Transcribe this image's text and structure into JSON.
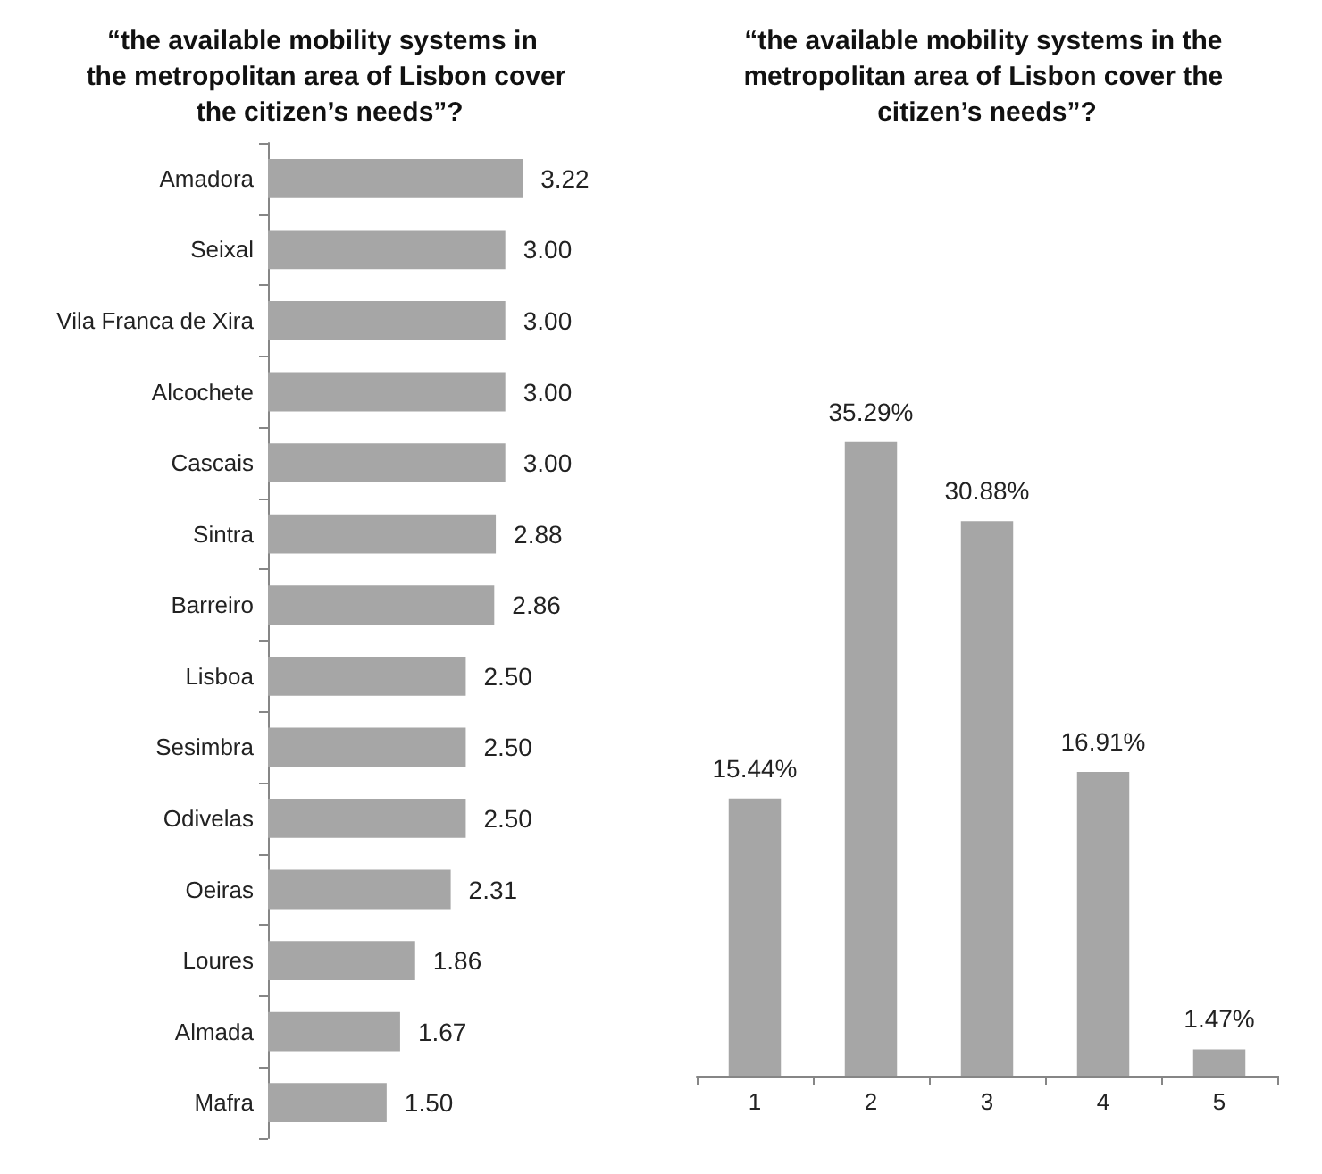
{
  "chart_data": [
    {
      "type": "bar",
      "orientation": "horizontal",
      "title": "“the available mobility systems in the metropolitan area of Lisbon cover the citizen’s needs”?",
      "categories": [
        "Amadora",
        "Seixal",
        "Vila Franca de Xira",
        "Alcochete",
        "Cascais",
        "Sintra",
        "Barreiro",
        "Lisboa",
        "Sesimbra",
        "Odivelas",
        "Oeiras",
        "Loures",
        "Almada",
        "Mafra"
      ],
      "values": [
        3.22,
        3.0,
        3.0,
        3.0,
        3.0,
        2.88,
        2.86,
        2.5,
        2.5,
        2.5,
        2.31,
        1.86,
        1.67,
        1.5
      ],
      "value_labels": [
        "3.22",
        "3.00",
        "3.00",
        "3.00",
        "3.00",
        "2.88",
        "2.86",
        "2.50",
        "2.50",
        "2.50",
        "2.31",
        "1.86",
        "1.67",
        "1.50"
      ],
      "color": "#a6a6a6"
    },
    {
      "type": "bar",
      "title": "“the available mobility systems in the metropolitan area of Lisbon cover the citizen’s needs”?",
      "categories": [
        "1",
        "2",
        "3",
        "4",
        "5"
      ],
      "values": [
        15.44,
        35.29,
        30.88,
        16.91,
        1.47
      ],
      "value_labels": [
        "15.44%",
        "35.29%",
        "30.88%",
        "16.91%",
        "1.47%"
      ],
      "color": "#a6a6a6"
    }
  ]
}
